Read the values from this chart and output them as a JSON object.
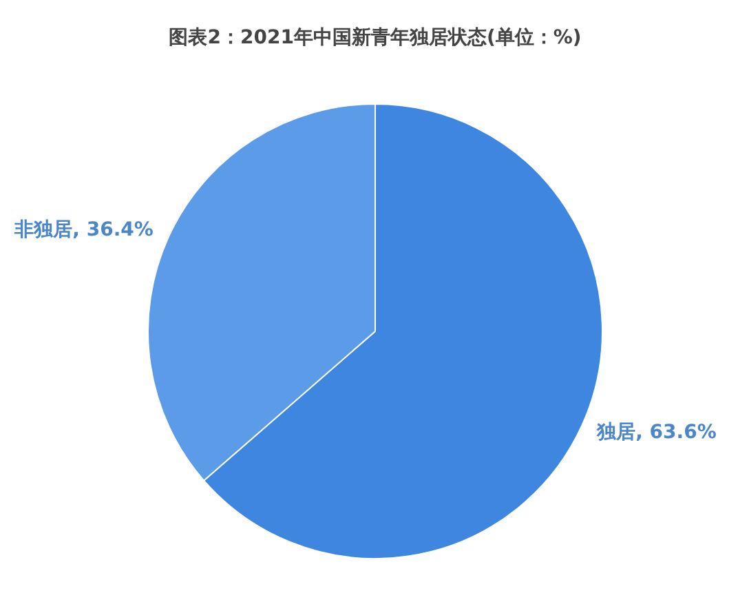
{
  "chart_data": {
    "type": "pie",
    "title": "图表2：2021年中国新青年独居状态(单位：%)",
    "categories": [
      "独居",
      "非独居"
    ],
    "values": [
      63.6,
      36.4
    ],
    "colors": [
      "#3f86e0",
      "#5b9be8"
    ],
    "value_labels": [
      "63.6%",
      "36.4%"
    ]
  }
}
